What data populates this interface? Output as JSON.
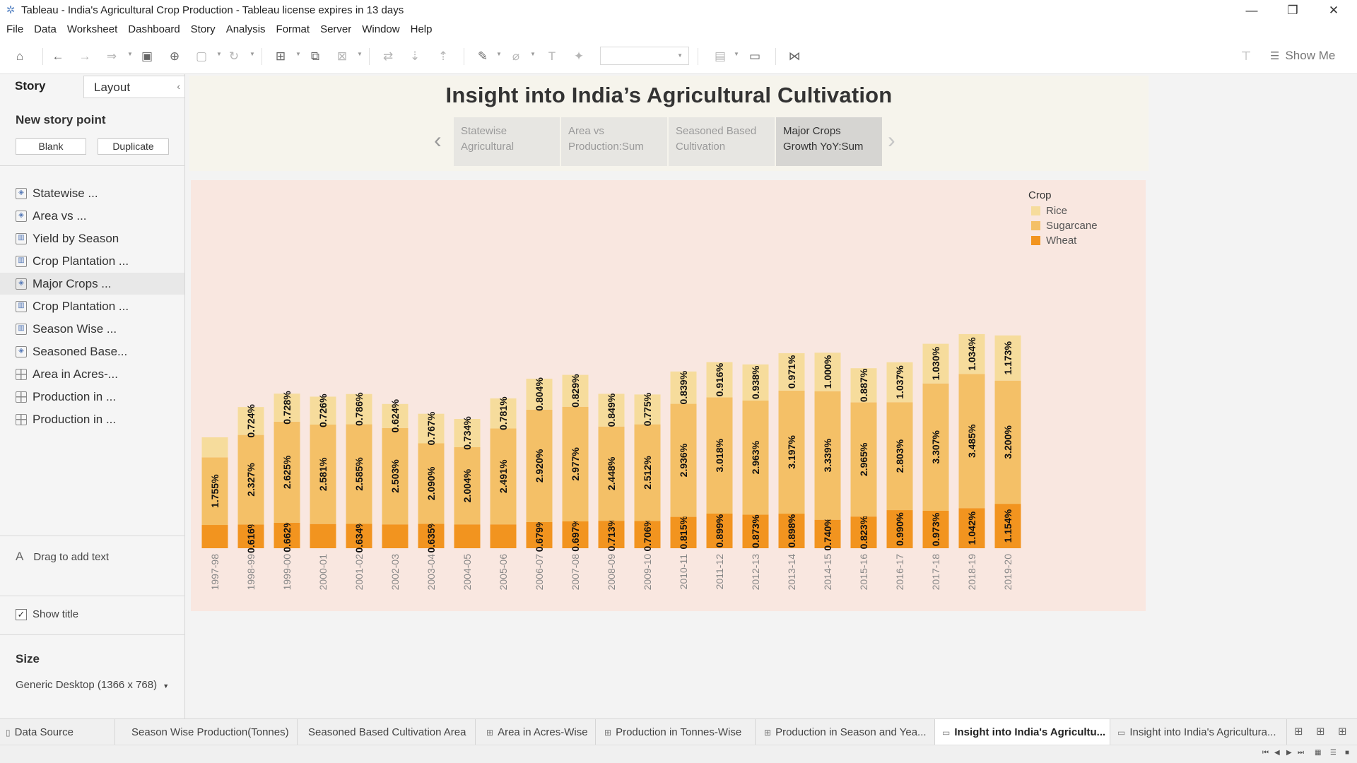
{
  "window": {
    "title": "Tableau - India's Agricultural Crop Production - Tableau license expires in 13 days",
    "minimize_glyph": "—",
    "restore_glyph": "❐",
    "close_glyph": "✕"
  },
  "menu": [
    "File",
    "Data",
    "Worksheet",
    "Dashboard",
    "Story",
    "Analysis",
    "Format",
    "Server",
    "Window",
    "Help"
  ],
  "toolbar": {
    "show_me_label": "Show Me",
    "icons": [
      "home-icon",
      "undo-icon",
      "redo-icon",
      "replay-icon",
      "save-icon",
      "new-data-source-icon",
      "pause-auto-update-icon",
      "refresh-icon",
      "new-worksheet-icon",
      "duplicate-icon",
      "clear-icon",
      "swap-icon",
      "sort-asc-icon",
      "sort-desc-icon",
      "highlight-icon",
      "group-icon",
      "label-icon",
      "pin-icon",
      "fit-icon",
      "presentation-icon",
      "share-icon"
    ]
  },
  "sidebar": {
    "tab_story": "Story",
    "tab_layout": "Layout",
    "new_story_point": "New story point",
    "blank_button": "Blank",
    "duplicate_button": "Duplicate",
    "sheets": [
      {
        "label": "Statewise ...",
        "icon": "dashboard"
      },
      {
        "label": "Area vs ...",
        "icon": "dashboard"
      },
      {
        "label": "Yield by Season",
        "icon": "worksheet"
      },
      {
        "label": "Crop Plantation ...",
        "icon": "worksheet"
      },
      {
        "label": "Major Crops ...",
        "icon": "dashboard"
      },
      {
        "label": "Crop Plantation ...",
        "icon": "worksheet"
      },
      {
        "label": "Season Wise ...",
        "icon": "worksheet"
      },
      {
        "label": "Seasoned Base...",
        "icon": "dashboard"
      },
      {
        "label": "Area in Acres-...",
        "icon": "grid"
      },
      {
        "label": "Production in ...",
        "icon": "grid"
      },
      {
        "label": "Production in ...",
        "icon": "grid"
      }
    ],
    "drag_text": "Drag to add text",
    "show_title": "Show title",
    "size_heading": "Size",
    "size_value": "Generic Desktop (1366 x 768)"
  },
  "story": {
    "title": "Insight into India’s Agricultural Cultivation",
    "points": [
      {
        "line1": "Statewise",
        "line2": "Agricultural"
      },
      {
        "line1": "Area vs",
        "line2": "Production:Sum"
      },
      {
        "line1": "Seasoned Based",
        "line2": "Cultivation"
      },
      {
        "line1": "Major Crops",
        "line2": "Growth YoY:Sum"
      }
    ]
  },
  "legend": {
    "title": "Crop",
    "items": [
      {
        "label": "Rice",
        "color": "#f6dc9c"
      },
      {
        "label": "Sugarcane",
        "color": "#f4c067"
      },
      {
        "label": "Wheat",
        "color": "#f2941f"
      }
    ]
  },
  "chart_data": {
    "type": "bar",
    "stacked": true,
    "categories": [
      "1997-98",
      "1998-99",
      "1999-00",
      "2000-01",
      "2001-02",
      "2002-03",
      "2003-04",
      "2004-05",
      "2005-06",
      "2006-07",
      "2007-08",
      "2008-09",
      "2009-10",
      "2010-11",
      "2011-12",
      "2012-13",
      "2013-14",
      "2014-15",
      "2015-16",
      "2016-17",
      "2017-18",
      "2018-19",
      "2019-20"
    ],
    "series": [
      {
        "name": "Wheat",
        "color": "#f2941f",
        "values": [
          0.605,
          0.616,
          0.662,
          0.63,
          0.634,
          0.62,
          0.635,
          0.62,
          0.62,
          0.679,
          0.697,
          0.713,
          0.706,
          0.815,
          0.899,
          0.873,
          0.898,
          0.74,
          0.823,
          0.99,
          0.973,
          1.042,
          1.154
        ],
        "labels": [
          "",
          "0.616%",
          "0.662%",
          "",
          "0.634%",
          "",
          "0.635%",
          "",
          "",
          "0.679%",
          "0.697%",
          "0.713%",
          "0.706%",
          "0.815%",
          "0.899%",
          "0.873%",
          "0.898%",
          "0.740%",
          "0.823%",
          "0.990%",
          "0.973%",
          "1.042%",
          "1.154%"
        ]
      },
      {
        "name": "Sugarcane",
        "color": "#f4c067",
        "values": [
          1.755,
          2.327,
          2.625,
          2.581,
          2.585,
          2.503,
          2.09,
          2.004,
          2.491,
          2.92,
          2.977,
          2.448,
          2.512,
          2.936,
          3.018,
          2.963,
          3.197,
          3.339,
          2.965,
          2.803,
          3.307,
          3.485,
          3.2
        ],
        "labels": [
          "1.755%",
          "2.327%",
          "2.625%",
          "2.581%",
          "2.585%",
          "2.503%",
          "2.090%",
          "2.004%",
          "2.491%",
          "2.920%",
          "2.977%",
          "2.448%",
          "2.512%",
          "2.936%",
          "3.018%",
          "2.963%",
          "3.197%",
          "3.339%",
          "2.965%",
          "2.803%",
          "3.307%",
          "3.485%",
          "3.200%"
        ]
      },
      {
        "name": "Rice",
        "color": "#f6dc9c",
        "values": [
          0.52,
          0.724,
          0.728,
          0.726,
          0.786,
          0.624,
          0.767,
          0.734,
          0.781,
          0.804,
          0.829,
          0.849,
          0.775,
          0.839,
          0.916,
          0.938,
          0.971,
          1.0,
          0.887,
          1.037,
          1.03,
          1.034,
          1.173
        ],
        "labels": [
          "",
          "0.724%",
          "0.728%",
          "0.726%",
          "0.786%",
          "0.624%",
          "0.767%",
          "0.734%",
          "0.781%",
          "0.804%",
          "0.829%",
          "0.849%",
          "0.775%",
          "0.839%",
          "0.916%",
          "0.938%",
          "0.971%",
          "1.000%",
          "0.887%",
          "1.037%",
          "1.030%",
          "1.034%",
          "1.173%"
        ]
      }
    ]
  },
  "sheet_tabs": [
    {
      "label": "Data Source",
      "icon": "datasource"
    },
    {
      "label": "Season Wise Production(Tonnes)",
      "icon": ""
    },
    {
      "label": "Seasoned Based Cultivation Area",
      "icon": ""
    },
    {
      "label": "Area in Acres-Wise",
      "icon": "grid"
    },
    {
      "label": "Production in Tonnes-Wise",
      "icon": "grid"
    },
    {
      "label": "Production in Season and Yea...",
      "icon": "grid"
    },
    {
      "label": "Insight into India's Agricultu...",
      "icon": "story",
      "active": true
    },
    {
      "label": "Insight into India's Agricultura...",
      "icon": "story"
    }
  ]
}
